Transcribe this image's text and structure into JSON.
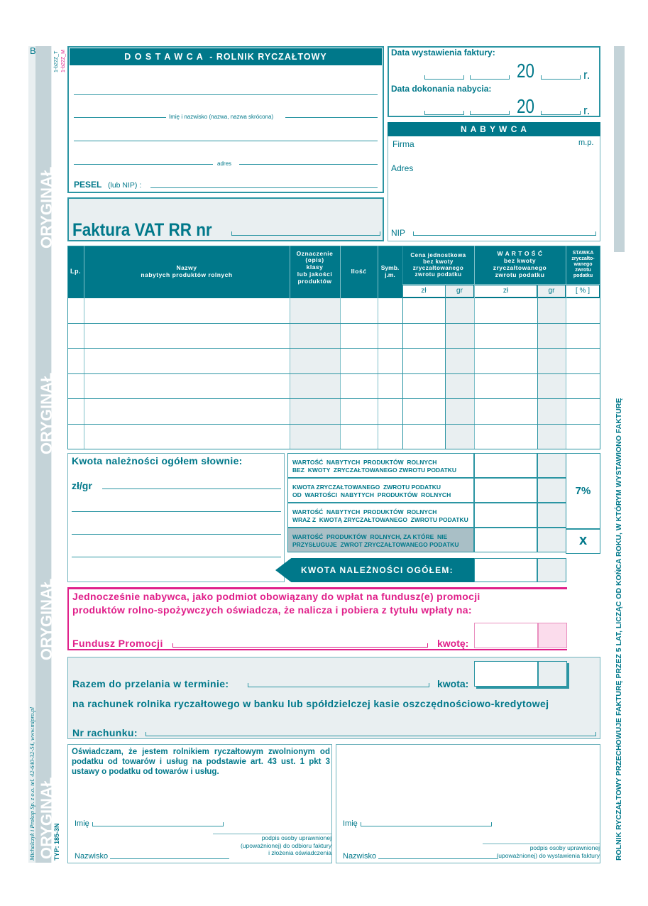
{
  "side": {
    "letter": "B",
    "code_t": "1-b22Z_T",
    "code_m": "1-b22Z_M",
    "watermark": "ORYGINAŁ",
    "typ": "TYP: 185-3N",
    "publisher": "Michalczyk i Prokop Sp. z o.o.   tel. 42-640-32-54,   www.mipro.pl",
    "right_note": "ROLNIK RYCZAŁTOWY PRZECHOWUJE FAKTURĘ PRZEZ 5 LAT, LICZĄC OD KOŃCA ROKU, W KTÓRYM WYSTAWIONO FAKTURĘ"
  },
  "supplier": {
    "title": "D O S T A W C A  - ROLNIK RYCZAŁTOWY",
    "name_label": "Imię i nazwisko (nazwa, nazwa skrócona)",
    "address_label": "adres",
    "pesel_label": "PESEL",
    "pesel_sub": "(lub NIP) :"
  },
  "invoice": {
    "title": "Faktura VAT RR  nr"
  },
  "dates": {
    "issue_label": "Data wystawienia faktury:",
    "purchase_label": "Data dokonania nabycia:",
    "year_prefix": "20",
    "year_suffix": "r."
  },
  "buyer": {
    "title": "N A B Y W C A",
    "firma": "Firma",
    "mp": "m.p.",
    "adres": "Adres",
    "nip": "NIP"
  },
  "table": {
    "headers": {
      "lp": "Lp.",
      "name": "Nazwy\nnabytych produktów rolnych",
      "class": "Oznaczenie\n(opis)\nklasy\nlub jakości\nproduktów",
      "qty": "Ilość",
      "unit": "Symb.\nj.m.",
      "price": "Cena jednostkowa\nbez kwoty\nzryczałtowanego\nzwrotu podatku",
      "value": "W A R T O Ś Ć\nbez kwoty\nzryczałtowanego\nzwrotu podatku",
      "rate": "STAWKA\nzryczałto-\nwanego\nzwrotu\npodatku",
      "zl": "zł",
      "gr": "gr",
      "pct": "[ % ]"
    },
    "rows": 6
  },
  "summary": {
    "words_label": "Kwota należności ogółem słownie:",
    "zlgr": "zł/gr",
    "rows": [
      "WARTOŚĆ  NABYTYCH  PRODUKTÓW  ROLNYCH\nBEZ  KWOTY  ZRYCZAŁTOWANEGO ZWROTU PODATKU",
      "KWOTA ZRYCZAŁTOWANEGO  ZWROTU PODATKU\nOD  WARTOŚCI  NABYTYCH  PRODUKTÓW  ROLNYCH",
      "WARTOŚĆ  NABYTYCH  PRODUKTÓW  ROLNYCH\nWRAZ Z  KWOTĄ ZRYCZAŁTOWANEGO  ZWROTU PODATKU",
      "WARTOŚĆ  PRODUKTÓW  ROLNYCH, ZA KTÓRE  NIE\nPRZYSŁUGUJE  ZWROT ZRYCZAŁTOWANEGO PODATKU"
    ],
    "rate": "7%",
    "x": "x",
    "total_label": "KWOTA  NALEŻNOŚCI  OGÓŁEM:"
  },
  "fund": {
    "text": "Jednocześnie nabywca, jako podmiot obowiązany do wpłat na fundusz(e) promocji produktów rolno-spożywczych oświadcza, że nalicza i pobiera z tytułu wpłaty na:",
    "label": "Fundusz Promocji",
    "amount": "kwotę:",
    "color": "#e0208a"
  },
  "transfer": {
    "label": "Razem do przelania w terminie:",
    "amount": "kwota:",
    "bank": "na rachunek rolnika ryczałtowego w banku lub spółdzielczej kasie oszczędnościowo-kredytowej",
    "account": "Nr rachunku:"
  },
  "declaration": {
    "text": "Oświadczam, że jestem rolnikiem ryczałtowym zwolnionym od podatku  od  towarów  i  usług  na podstawie art. 43 ust. 1 pkt 3 ustawy o podatku od towarów i usług.",
    "imie": "Imię",
    "nazwisko": "Nazwisko",
    "sig_left": "podpis osoby uprawnionej\n(upoważnionej) do odbioru faktury\ni złożenia oświadczenia",
    "sig_right": "podpis osoby uprawnionej\n(upoważnionej) do wystawienia faktury"
  }
}
